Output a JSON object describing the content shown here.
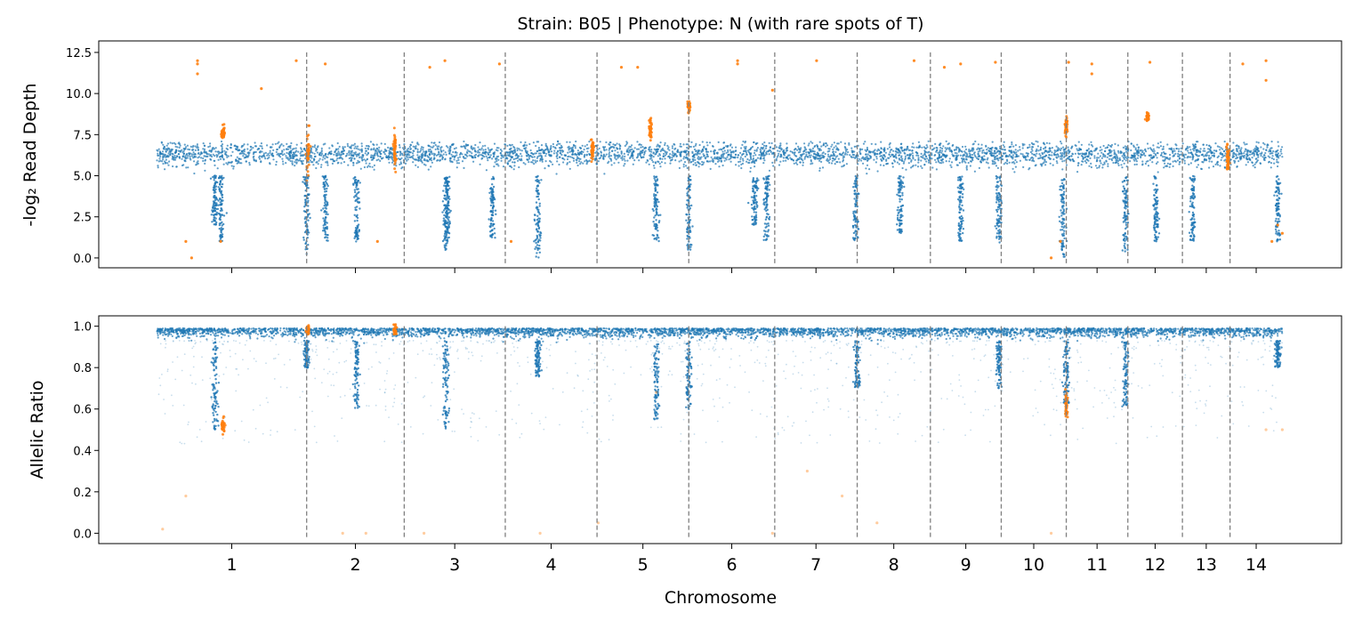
{
  "chart_data": {
    "type": "scatter",
    "title": "Strain: B05 | Phenotype: N (with rare spots of T)",
    "xlabel": "Chromosome",
    "colors": {
      "main": "#1f77b4",
      "highlight": "#ff7f0e",
      "boundary": "#7f7f7f"
    },
    "chromosomes": [
      {
        "label": "1",
        "start": 0,
        "end": 1.29
      },
      {
        "label": "2",
        "start": 1.29,
        "end": 2.13
      },
      {
        "label": "3",
        "start": 2.13,
        "end": 3.0
      },
      {
        "label": "4",
        "start": 3.0,
        "end": 3.79
      },
      {
        "label": "5",
        "start": 3.79,
        "end": 4.58
      },
      {
        "label": "6",
        "start": 4.58,
        "end": 5.32
      },
      {
        "label": "7",
        "start": 5.32,
        "end": 6.03
      },
      {
        "label": "8",
        "start": 6.03,
        "end": 6.66
      },
      {
        "label": "9",
        "start": 6.66,
        "end": 7.27
      },
      {
        "label": "10",
        "start": 7.27,
        "end": 7.83
      },
      {
        "label": "11",
        "start": 7.83,
        "end": 8.36
      },
      {
        "label": "12",
        "start": 8.36,
        "end": 8.83
      },
      {
        "label": "13",
        "start": 8.83,
        "end": 9.24
      },
      {
        "label": "14",
        "start": 9.24,
        "end": 9.69
      }
    ],
    "xlim": [
      -0.5,
      10.2
    ],
    "subplots": [
      {
        "name": "read-depth",
        "ylabel": "-log₂ Read Depth",
        "ylim": [
          -0.6,
          13.2
        ],
        "yticks": [
          0.0,
          2.5,
          5.0,
          7.5,
          10.0,
          12.5
        ],
        "ytick_labels": [
          "0.0",
          "2.5",
          "5.0",
          "7.5",
          "10.0",
          "12.5"
        ],
        "baseline": 6.3,
        "band": [
          5.0,
          7.1
        ],
        "dips": [
          {
            "x": 0.5,
            "min": 2.0
          },
          {
            "x": 0.55,
            "min": 1.0
          },
          {
            "x": 1.29,
            "min": 0.2
          },
          {
            "x": 1.45,
            "min": 1.0
          },
          {
            "x": 1.72,
            "min": 1.0
          },
          {
            "x": 2.5,
            "min": 1.0
          },
          {
            "x": 2.49,
            "min": 0.4
          },
          {
            "x": 2.89,
            "min": 1.0
          },
          {
            "x": 3.28,
            "min": 0.0
          },
          {
            "x": 4.3,
            "min": 1.0
          },
          {
            "x": 4.58,
            "min": 0.5
          },
          {
            "x": 5.15,
            "min": 2.0
          },
          {
            "x": 5.25,
            "min": 1.0
          },
          {
            "x": 6.02,
            "min": 1.0
          },
          {
            "x": 6.4,
            "min": 1.5
          },
          {
            "x": 6.92,
            "min": 1.0
          },
          {
            "x": 7.25,
            "min": 0.9
          },
          {
            "x": 7.8,
            "min": 0.0
          },
          {
            "x": 8.34,
            "min": 0.4
          },
          {
            "x": 8.6,
            "min": 1.0
          },
          {
            "x": 8.92,
            "min": 1.0
          },
          {
            "x": 9.65,
            "min": 1.0
          }
        ],
        "highlight_clusters": [
          {
            "x": 0.57,
            "y": 7.6,
            "spread": 0.2
          },
          {
            "x": 1.3,
            "y": 6.3,
            "spread": 0.6
          },
          {
            "x": 2.05,
            "y": 6.4,
            "spread": 0.6
          },
          {
            "x": 4.25,
            "y": 8.0,
            "spread": 0.3
          },
          {
            "x": 4.58,
            "y": 9.2,
            "spread": 0.2
          },
          {
            "x": 7.83,
            "y": 8.0,
            "spread": 0.3
          },
          {
            "x": 8.53,
            "y": 8.6,
            "spread": 0.1
          },
          {
            "x": 3.75,
            "y": 6.6,
            "spread": 0.3
          },
          {
            "x": 9.22,
            "y": 6.0,
            "spread": 0.4
          }
        ],
        "highlight_outliers": [
          {
            "x": 0.35,
            "y": 12.0
          },
          {
            "x": 0.35,
            "y": 11.8
          },
          {
            "x": 0.35,
            "y": 11.2
          },
          {
            "x": 1.2,
            "y": 12.0
          },
          {
            "x": 1.45,
            "y": 11.8
          },
          {
            "x": 2.35,
            "y": 11.6
          },
          {
            "x": 2.48,
            "y": 12.0
          },
          {
            "x": 2.95,
            "y": 11.8
          },
          {
            "x": 4.0,
            "y": 11.6
          },
          {
            "x": 4.14,
            "y": 11.6
          },
          {
            "x": 5.0,
            "y": 12.0
          },
          {
            "x": 5.0,
            "y": 11.8
          },
          {
            "x": 5.3,
            "y": 10.2
          },
          {
            "x": 5.68,
            "y": 12.0
          },
          {
            "x": 6.52,
            "y": 12.0
          },
          {
            "x": 6.78,
            "y": 11.6
          },
          {
            "x": 6.92,
            "y": 11.8
          },
          {
            "x": 7.22,
            "y": 11.9
          },
          {
            "x": 7.85,
            "y": 11.9
          },
          {
            "x": 8.05,
            "y": 11.8
          },
          {
            "x": 8.05,
            "y": 11.2
          },
          {
            "x": 8.55,
            "y": 11.9
          },
          {
            "x": 9.35,
            "y": 11.8
          },
          {
            "x": 9.55,
            "y": 12.0
          },
          {
            "x": 9.55,
            "y": 10.8
          },
          {
            "x": 0.3,
            "y": 0.0
          },
          {
            "x": 0.25,
            "y": 1.0
          },
          {
            "x": 0.55,
            "y": 1.0
          },
          {
            "x": 1.9,
            "y": 1.0
          },
          {
            "x": 3.05,
            "y": 1.0
          },
          {
            "x": 7.7,
            "y": 0.0
          },
          {
            "x": 7.78,
            "y": 1.0
          },
          {
            "x": 9.6,
            "y": 1.0
          },
          {
            "x": 9.65,
            "y": 2.0
          },
          {
            "x": 9.69,
            "y": 1.5
          },
          {
            "x": 0.9,
            "y": 10.3
          }
        ]
      },
      {
        "name": "allelic-ratio",
        "ylabel": "Allelic Ratio",
        "ylim": [
          -0.05,
          1.05
        ],
        "yticks": [
          0.0,
          0.2,
          0.4,
          0.6,
          0.8,
          1.0
        ],
        "ytick_labels": [
          "0.0",
          "0.2",
          "0.4",
          "0.6",
          "0.8",
          "1.0"
        ],
        "baseline": 0.97,
        "band": [
          0.93,
          0.99
        ],
        "dips": [
          {
            "x": 0.5,
            "min": 0.5
          },
          {
            "x": 1.29,
            "min": 0.8
          },
          {
            "x": 1.72,
            "min": 0.6
          },
          {
            "x": 2.49,
            "min": 0.5
          },
          {
            "x": 3.28,
            "min": 0.75
          },
          {
            "x": 4.3,
            "min": 0.55
          },
          {
            "x": 4.58,
            "min": 0.6
          },
          {
            "x": 6.03,
            "min": 0.7
          },
          {
            "x": 7.25,
            "min": 0.7
          },
          {
            "x": 7.83,
            "min": 0.62
          },
          {
            "x": 8.34,
            "min": 0.6
          },
          {
            "x": 9.65,
            "min": 0.8
          }
        ],
        "highlight_clusters": [
          {
            "x": 0.57,
            "y": 0.52,
            "spread": 0.02
          },
          {
            "x": 7.83,
            "y": 0.62,
            "spread": 0.03
          },
          {
            "x": 1.3,
            "y": 0.98,
            "spread": 0.01
          },
          {
            "x": 2.05,
            "y": 0.98,
            "spread": 0.01
          }
        ],
        "highlight_outliers": [
          {
            "x": 0.05,
            "y": 0.02
          },
          {
            "x": 0.25,
            "y": 0.18
          },
          {
            "x": 1.6,
            "y": 0.0
          },
          {
            "x": 1.8,
            "y": 0.0
          },
          {
            "x": 2.3,
            "y": 0.0
          },
          {
            "x": 3.3,
            "y": 0.0
          },
          {
            "x": 3.8,
            "y": 0.05
          },
          {
            "x": 5.3,
            "y": 0.0
          },
          {
            "x": 5.9,
            "y": 0.18
          },
          {
            "x": 6.2,
            "y": 0.05
          },
          {
            "x": 7.7,
            "y": 0.0
          },
          {
            "x": 9.55,
            "y": 0.5
          },
          {
            "x": 9.69,
            "y": 0.5
          },
          {
            "x": 4.3,
            "y": 0.68
          },
          {
            "x": 5.6,
            "y": 0.3
          }
        ]
      }
    ]
  }
}
